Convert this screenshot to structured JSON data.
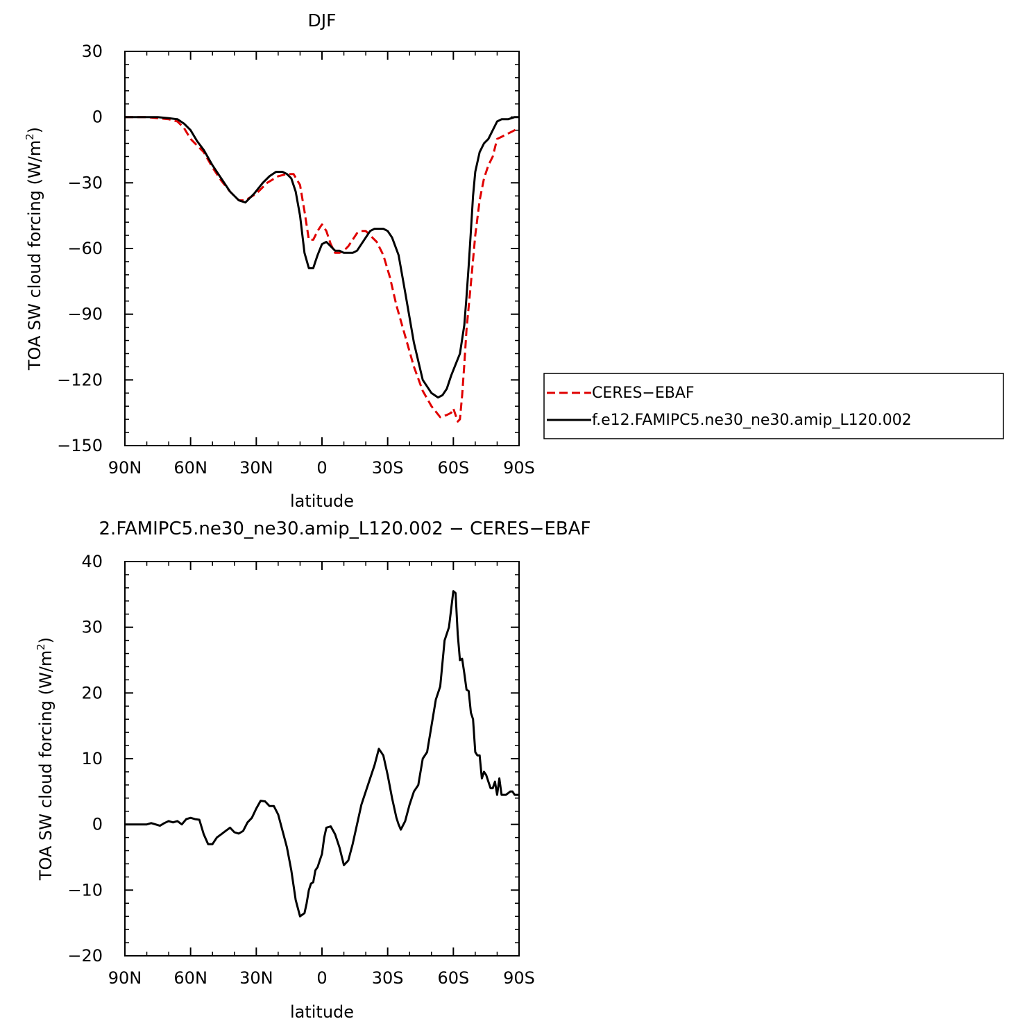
{
  "chart_data": [
    {
      "type": "line",
      "title": "DJF",
      "xlabel": "latitude",
      "ylabel": "TOA SW cloud forcing (W/m²)",
      "ylabel_main": "TOA SW cloud forcing (W/m",
      "ylabel_sup": "2",
      "ylabel_close": ")",
      "xlim": [
        90,
        -90
      ],
      "ylim": [
        -150,
        30
      ],
      "xticks": [
        90,
        60,
        30,
        0,
        -30,
        -60,
        -90
      ],
      "xtick_labels": [
        "90N",
        "60N",
        "30N",
        "0",
        "30S",
        "60S",
        "90S"
      ],
      "yticks": [
        30,
        0,
        -30,
        -60,
        -90,
        -120,
        -150
      ],
      "ytick_labels": [
        "30",
        "0",
        "−30",
        "−60",
        "−90",
        "−120",
        "−150"
      ],
      "legend": {
        "placement": "right",
        "entries": [
          "CERES−EBAF",
          "f.e12.FAMIPC5.ne30_ne30.amip_L120.002"
        ]
      },
      "series": [
        {
          "name": "CERES−EBAF",
          "color": "#e00000",
          "style": "dashed",
          "x": [
            90,
            85,
            80,
            75,
            70,
            66,
            63,
            60,
            57,
            54,
            50,
            46,
            42,
            38,
            35,
            30,
            25,
            20,
            16,
            13,
            10,
            8,
            6,
            4,
            2,
            0,
            -2,
            -4,
            -6,
            -8,
            -10,
            -12,
            -14,
            -16,
            -18,
            -20,
            -22,
            -25,
            -28,
            -31,
            -34,
            -38,
            -42,
            -46,
            -50,
            -54,
            -57,
            -59,
            -60,
            -61,
            -62,
            -63,
            -64,
            -65,
            -66,
            -68,
            -70,
            -72,
            -74,
            -76,
            -78,
            -80,
            -82,
            -84,
            -86,
            -88,
            -90
          ],
          "y": [
            0,
            0,
            0,
            -0.5,
            -1,
            -2,
            -5,
            -10,
            -13,
            -16,
            -23,
            -29,
            -34,
            -38,
            -38,
            -35,
            -30,
            -27,
            -26,
            -26,
            -31,
            -43,
            -56,
            -56,
            -52,
            -49,
            -52,
            -58,
            -62,
            -62,
            -61,
            -59,
            -56,
            -53,
            -52,
            -52,
            -54,
            -57,
            -63,
            -73,
            -86,
            -100,
            -114,
            -125,
            -132,
            -137,
            -136,
            -135,
            -133,
            -136,
            -139,
            -138,
            -127,
            -113,
            -97,
            -76,
            -54,
            -38,
            -28,
            -22,
            -18,
            -10,
            -9,
            -8,
            -7,
            -6,
            -5
          ]
        },
        {
          "name": "f.e12.FAMIPC5.ne30_ne30.amip_L120.002",
          "color": "#000000",
          "style": "solid",
          "x": [
            90,
            85,
            80,
            75,
            70,
            66,
            63,
            60,
            57,
            54,
            50,
            46,
            42,
            38,
            35,
            31,
            27,
            24,
            21,
            18,
            16,
            14,
            12,
            10,
            8,
            6,
            4,
            3,
            2,
            0,
            -2,
            -4,
            -6,
            -8,
            -10,
            -12,
            -14,
            -16,
            -18,
            -20,
            -22,
            -24,
            -26,
            -28,
            -30,
            -32,
            -35,
            -38,
            -42,
            -46,
            -50,
            -53,
            -55,
            -57,
            -59,
            -61,
            -63,
            -65,
            -66,
            -67,
            -68,
            -69,
            -70,
            -72,
            -74,
            -76,
            -78,
            -80,
            -82,
            -85,
            -88,
            -90
          ],
          "y": [
            0,
            0,
            0,
            0,
            -0.5,
            -1,
            -3,
            -6,
            -11,
            -15,
            -22,
            -28,
            -34,
            -38,
            -39,
            -35,
            -30,
            -27,
            -25,
            -25,
            -26,
            -28,
            -34,
            -45,
            -62,
            -69,
            -69,
            -66,
            -63,
            -58,
            -57,
            -59,
            -61,
            -61,
            -62,
            -62,
            -62,
            -61,
            -58,
            -55,
            -52,
            -51,
            -51,
            -51,
            -52,
            -55,
            -63,
            -80,
            -103,
            -120,
            -126,
            -128,
            -127,
            -124,
            -118,
            -113,
            -108,
            -95,
            -82,
            -68,
            -52,
            -36,
            -25,
            -16,
            -12,
            -10,
            -6,
            -2,
            -1,
            -1,
            0,
            0
          ]
        }
      ]
    },
    {
      "type": "line",
      "title": "2.FAMIPC5.ne30_ne30.amip_L120.002 − CERES−EBAF",
      "xlabel": "latitude",
      "ylabel": "TOA SW cloud forcing (W/m²)",
      "ylabel_main": "TOA SW cloud forcing (W/m",
      "ylabel_sup": "2",
      "ylabel_close": ")",
      "xlim": [
        90,
        -90
      ],
      "ylim": [
        -20,
        40
      ],
      "xticks": [
        90,
        60,
        30,
        0,
        -30,
        -60,
        -90
      ],
      "xtick_labels": [
        "90N",
        "60N",
        "30N",
        "0",
        "30S",
        "60S",
        "90S"
      ],
      "yticks": [
        40,
        30,
        20,
        10,
        0,
        -10,
        -20
      ],
      "ytick_labels": [
        "40",
        "30",
        "20",
        "10",
        "0",
        "−10",
        "−20"
      ],
      "series": [
        {
          "color": "#000000",
          "style": "solid",
          "x": [
            90,
            85,
            80,
            78,
            76,
            74,
            72,
            70,
            68,
            66,
            64,
            62,
            60,
            58,
            56,
            54,
            52,
            50,
            48,
            46,
            44,
            42,
            40,
            38,
            36,
            34,
            32,
            30,
            28,
            26,
            24,
            22,
            20,
            18,
            16,
            14,
            12,
            10,
            8,
            7,
            6,
            5,
            4,
            3,
            2,
            1,
            0,
            -1,
            -2,
            -4,
            -6,
            -8,
            -10,
            -12,
            -14,
            -16,
            -18,
            -20,
            -22,
            -24,
            -26,
            -28,
            -30,
            -32,
            -34,
            -35,
            -36,
            -38,
            -40,
            -42,
            -44,
            -46,
            -48,
            -50,
            -52,
            -54,
            -56,
            -58,
            -60,
            -61,
            -62,
            -63,
            -64,
            -65,
            -66,
            -67,
            -68,
            -69,
            -70,
            -71,
            -72,
            -73,
            -74,
            -75,
            -76,
            -77,
            -78,
            -79,
            -80,
            -81,
            -82,
            -84,
            -86,
            -87,
            -88,
            -89,
            -90
          ],
          "y": [
            0,
            0,
            0,
            0.2,
            0,
            -0.2,
            0.2,
            0.5,
            0.3,
            0.5,
            0,
            0.8,
            1,
            0.8,
            0.7,
            -1.5,
            -3,
            -3,
            -2,
            -1.5,
            -1,
            -0.5,
            -1.2,
            -1.4,
            -1,
            0.3,
            1,
            2.4,
            3.6,
            3.5,
            2.8,
            2.8,
            1.5,
            -1,
            -3.5,
            -7,
            -11.5,
            -14,
            -13.5,
            -12,
            -10,
            -9,
            -8.8,
            -7,
            -6.5,
            -5.5,
            -4.5,
            -2,
            -0.5,
            -0.3,
            -1.5,
            -3.5,
            -6.2,
            -5.5,
            -3,
            0,
            3,
            5,
            7,
            9,
            11.5,
            10.5,
            7.5,
            4,
            1,
            0,
            -0.8,
            0.5,
            3,
            5,
            6,
            10,
            11,
            15,
            19,
            21,
            28,
            30,
            35.5,
            35.2,
            29,
            25,
            25.2,
            23,
            20.5,
            20.3,
            17,
            16,
            11,
            10.5,
            10.5,
            7,
            8,
            7.5,
            6.5,
            5.5,
            5.5,
            6.5,
            4.5,
            7,
            4.5,
            4.5,
            5,
            5,
            4.5,
            4.5,
            4.5
          ]
        }
      ]
    }
  ]
}
